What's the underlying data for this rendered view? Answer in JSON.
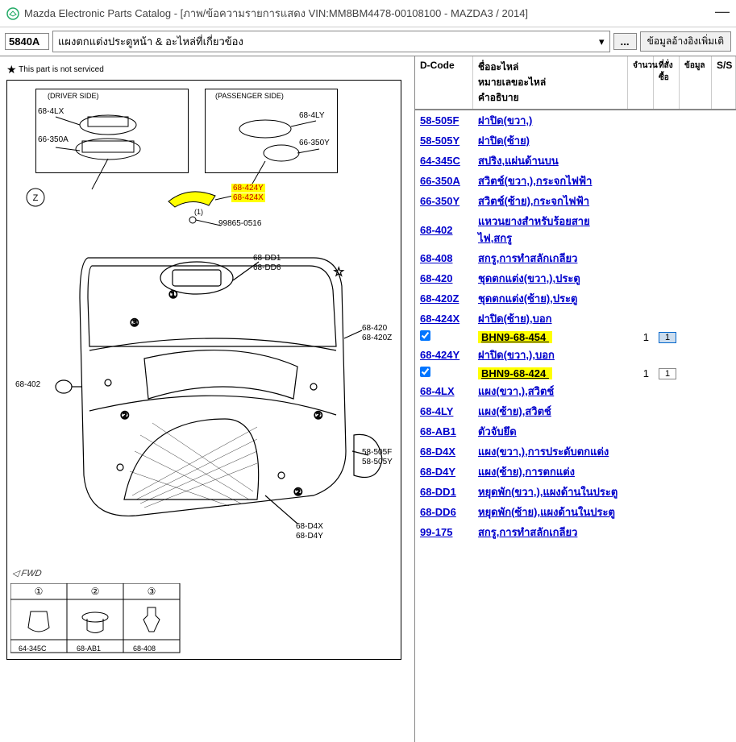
{
  "window": {
    "title": "Mazda Electronic Parts Catalog - [ภาพ/ข้อความรายการแสดง VIN:MM8BM4478-00108100 - MAZDA3 / 2014]",
    "minimize": "—"
  },
  "toolbar": {
    "code": "5840A",
    "label": "แผงตกแต่งประตูหน้า & อะไหล่ที่เกี่ยวข้อง",
    "more": "...",
    "extra": "ข้อมูลอ้างอิงเพิ่มเติ"
  },
  "note": "This part is not serviced",
  "diagram": {
    "driver_side": "(DRIVER SIDE)",
    "passenger_side": "(PASSENGER SIDE)",
    "callouts": {
      "c68_4LX": "68-4LX",
      "c66_350A": "66-350A",
      "c68_4LY": "68-4LY",
      "c66_350Y": "66-350Y",
      "c68_424Y": "68-424Y",
      "c68_424X": "68-424X",
      "c99865": "99865-0516",
      "c68_DD1": "68-DD1",
      "c68_DD6": "68-DD6",
      "c68_402": "68-402",
      "c68_420": "68-420",
      "c68_420Z": "68-420Z",
      "c58_505F": "58-505F",
      "c58_505Y": "58-505Y",
      "c68_D4X": "68-D4X",
      "c68_D4Y": "68-D4Y",
      "c64_345C": "64-345C",
      "c68_AB1": "68-AB1",
      "c68_408": "68-408",
      "one": "(1)",
      "z": "Z",
      "n1": "①",
      "n2": "②",
      "n3": "③",
      "fwd": "FWD"
    }
  },
  "table": {
    "headers": {
      "dcode": "D-Code",
      "name": "ชื่ออะไหล่\nหมายเลขอะไหล่\nคำอธิบาย",
      "qty": "จำนวน",
      "order": "ที่สั่งซื้อ",
      "info": "ข้อมูล",
      "ss": "S/S"
    },
    "rows": [
      {
        "dcode": "58-505F",
        "name": "ฝาปิด(ขวา,)"
      },
      {
        "dcode": "58-505Y",
        "name": "ฝาปิด(ซ้าย)"
      },
      {
        "dcode": "64-345C",
        "name": "สปริง,แผ่นด้านบน"
      },
      {
        "dcode": "66-350A",
        "name": "สวิตช์(ขวา,),กระจกไฟฟ้า"
      },
      {
        "dcode": "66-350Y",
        "name": "สวิตช์(ซ้าย),กระจกไฟฟ้า"
      },
      {
        "dcode": "68-402",
        "name": "แหวนยางสำหรับร้อยสายไฟ,สกรู"
      },
      {
        "dcode": "68-408",
        "name": "สกรู,การทำสลักเกลียว"
      },
      {
        "dcode": "68-420",
        "name": "ชุดตกแต่ง(ขวา,),ประตู"
      },
      {
        "dcode": "68-420Z",
        "name": "ชุดตกแต่ง(ซ้าย),ประตู"
      },
      {
        "dcode": "68-424X",
        "name": "ฝาปิด(ซ้าย),บอก"
      },
      {
        "check": true,
        "part": "BHN9-68-454",
        "qty": "1",
        "order": "1",
        "hl": true,
        "sel": true
      },
      {
        "dcode": "68-424Y",
        "name": "ฝาปิด(ขวา,),บอก"
      },
      {
        "check": true,
        "part": "BHN9-68-424",
        "qty": "1",
        "order": "1",
        "hl": true
      },
      {
        "dcode": "68-4LX",
        "name": "แผง(ขวา,),สวิตช์"
      },
      {
        "dcode": "68-4LY",
        "name": "แผง(ซ้าย),สวิตช์"
      },
      {
        "dcode": "68-AB1",
        "name": "ตัวจับยึด"
      },
      {
        "dcode": "68-D4X",
        "name": "แผง(ขวา,),การประดับตกแต่ง"
      },
      {
        "dcode": "68-D4Y",
        "name": "แผง(ซ้าย),การตกแต่ง"
      },
      {
        "dcode": "68-DD1",
        "name": "หยุดพัก(ขวา,),แผงด้านในประตู"
      },
      {
        "dcode": "68-DD6",
        "name": "หยุดพัก(ซ้าย),แผงด้านในประตู"
      },
      {
        "dcode": "99-175",
        "name": "สกรู,การทำสลักเกลียว"
      }
    ]
  }
}
